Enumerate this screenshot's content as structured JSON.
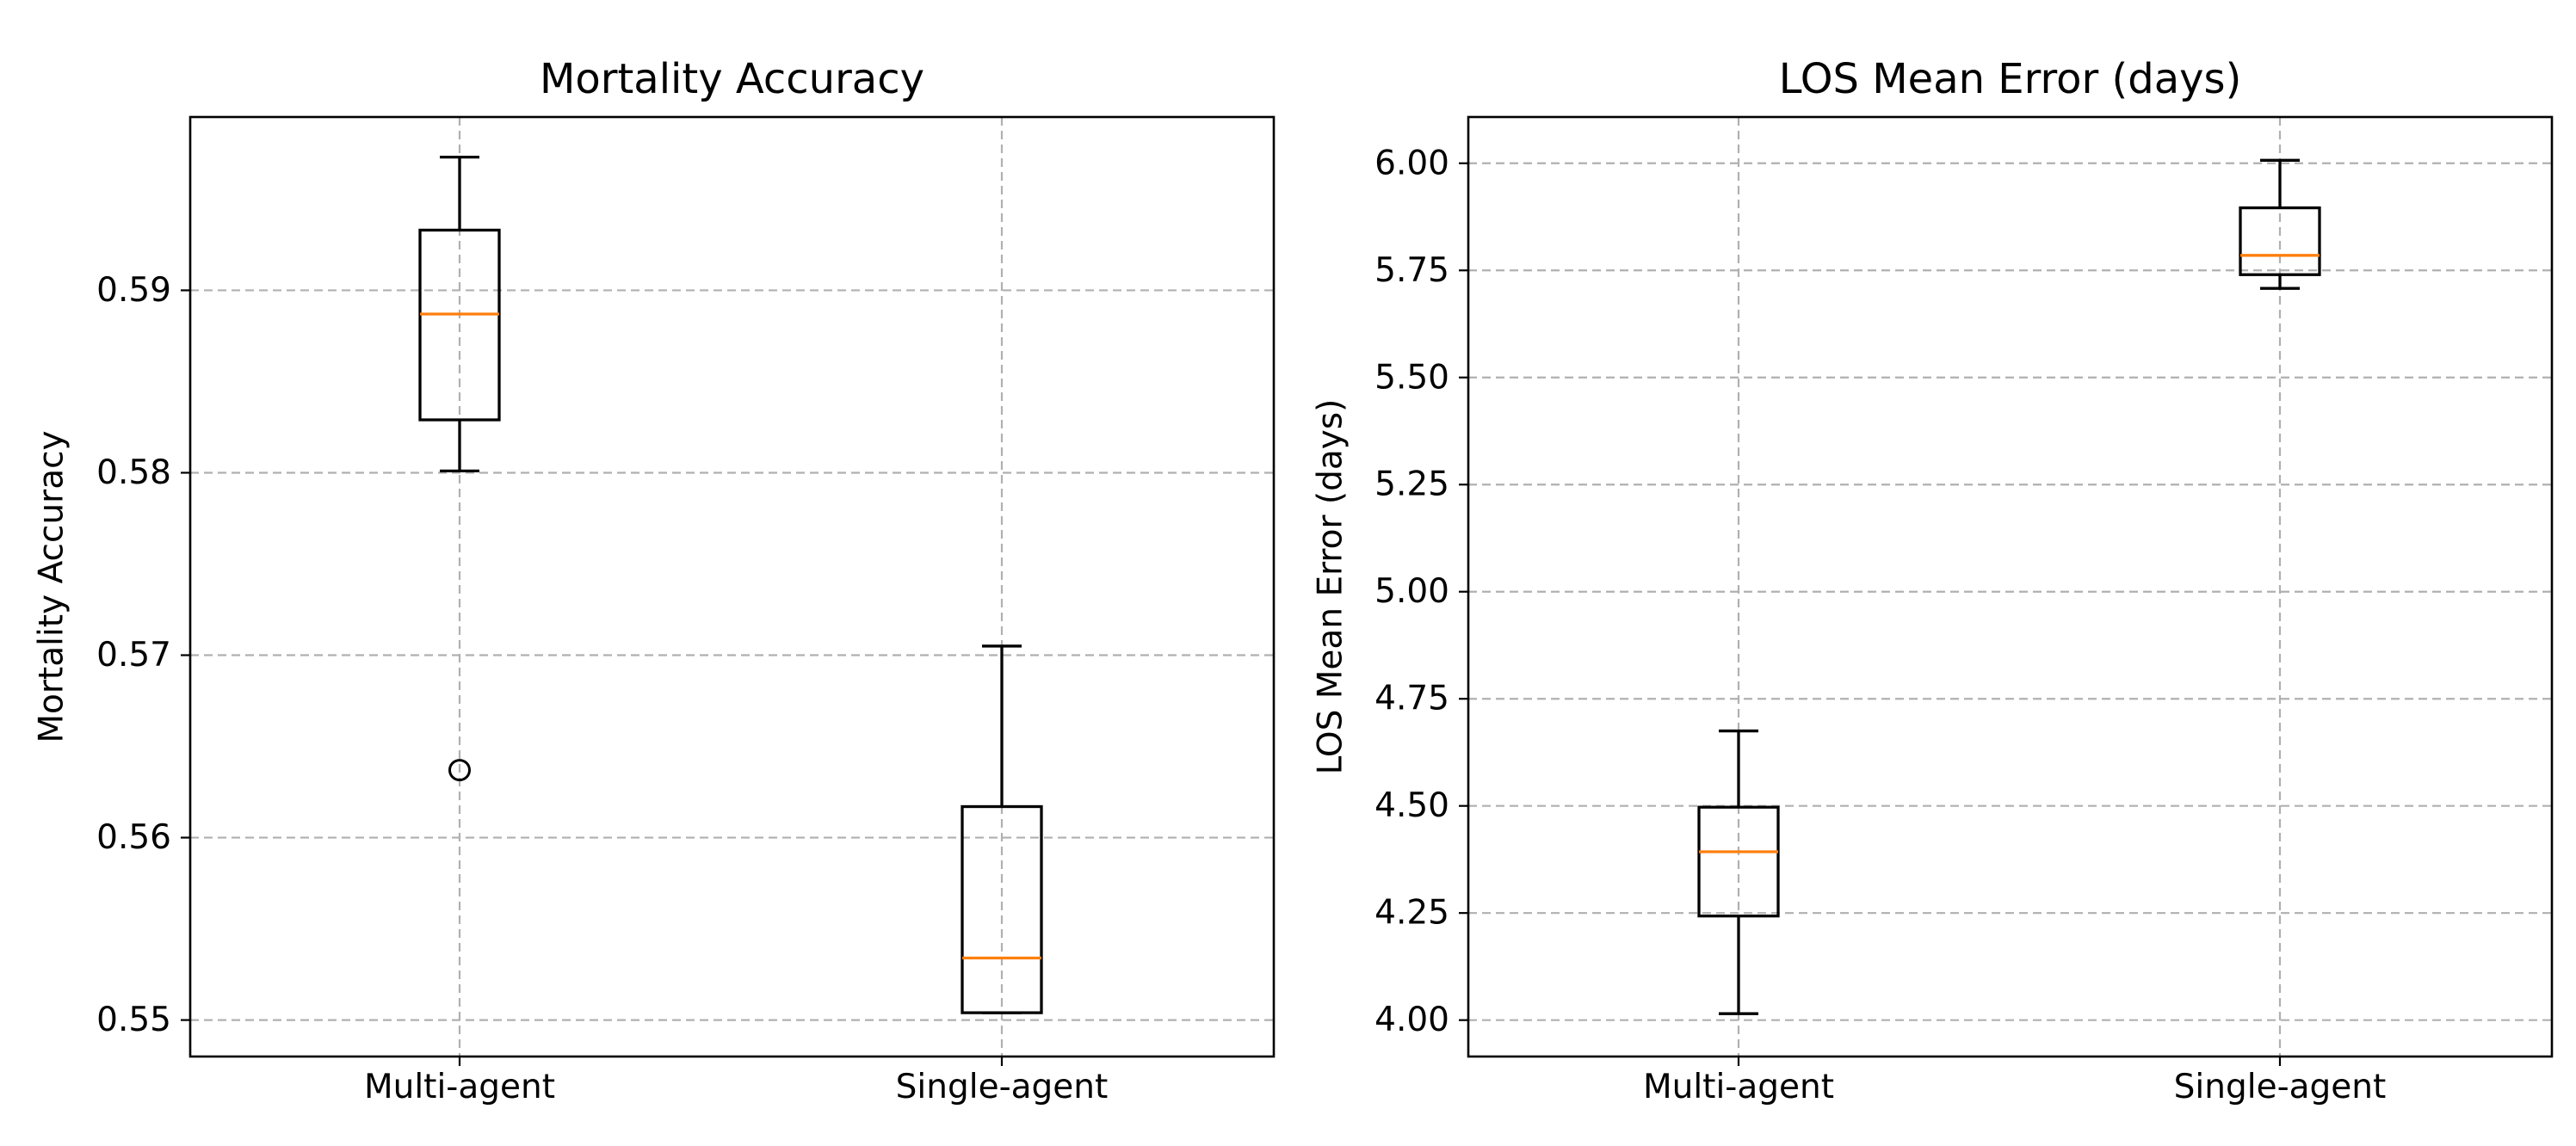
{
  "chart_data": [
    {
      "type": "box",
      "title": "Mortality Accuracy",
      "xlabel": "",
      "ylabel": "Mortality Accuracy",
      "ylim": [
        0.548,
        0.5995
      ],
      "yticks": [
        0.55,
        0.56,
        0.57,
        0.58,
        0.59
      ],
      "ytick_labels": [
        "0.55",
        "0.56",
        "0.57",
        "0.58",
        "0.59"
      ],
      "grid": true,
      "categories": [
        "Multi-agent",
        "Single-agent"
      ],
      "boxes": [
        {
          "name": "Multi-agent",
          "whisker_low": 0.5801,
          "q1": 0.5829,
          "median": 0.5887,
          "q3": 0.5933,
          "whisker_high": 0.5973,
          "outliers": [
            0.5637
          ]
        },
        {
          "name": "Single-agent",
          "whisker_low": 0.5504,
          "q1": 0.5504,
          "median": 0.5534,
          "q3": 0.5617,
          "whisker_high": 0.5705,
          "outliers": []
        }
      ],
      "colors": {
        "box": "#000000",
        "median": "#ff7f0e",
        "grid": "#b0b0b0"
      }
    },
    {
      "type": "box",
      "title": "LOS Mean Error (days)",
      "xlabel": "",
      "ylabel": "LOS Mean Error (days)",
      "ylim": [
        3.915,
        6.108
      ],
      "yticks": [
        4.0,
        4.25,
        4.5,
        4.75,
        5.0,
        5.25,
        5.5,
        5.75,
        6.0
      ],
      "ytick_labels": [
        "4.00",
        "4.25",
        "4.50",
        "4.75",
        "5.00",
        "5.25",
        "5.50",
        "5.75",
        "6.00"
      ],
      "grid": true,
      "categories": [
        "Multi-agent",
        "Single-agent"
      ],
      "boxes": [
        {
          "name": "Multi-agent",
          "whisker_low": 4.015,
          "q1": 4.243,
          "median": 4.393,
          "q3": 4.497,
          "whisker_high": 4.675,
          "outliers": []
        },
        {
          "name": "Single-agent",
          "whisker_low": 5.708,
          "q1": 5.74,
          "median": 5.785,
          "q3": 5.896,
          "whisker_high": 6.007,
          "outliers": []
        }
      ],
      "colors": {
        "box": "#000000",
        "median": "#ff7f0e",
        "grid": "#b0b0b0"
      }
    }
  ]
}
